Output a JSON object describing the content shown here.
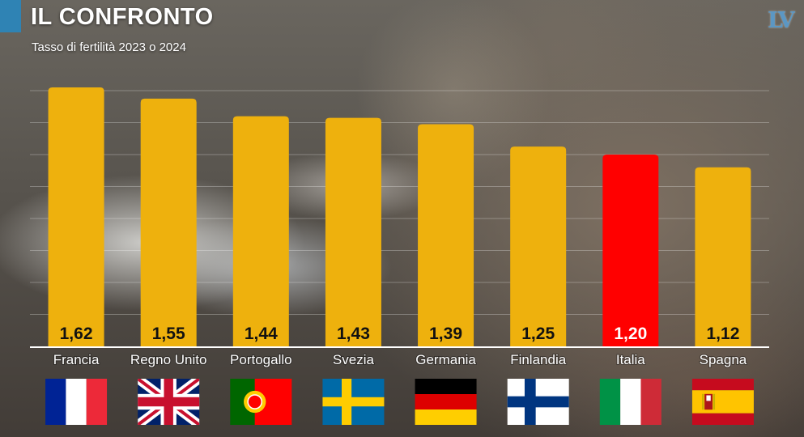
{
  "header": {
    "title": "IL CONFRONTO",
    "subtitle": "Tasso di fertilità 2023 o 2024",
    "logo": "LV"
  },
  "colors": {
    "bar": "#eeb10d",
    "highlight": "#ff0000",
    "accent": "#2f83b4"
  },
  "chart_data": {
    "type": "bar",
    "title": "IL CONFRONTO",
    "subtitle": "Tasso di fertilità 2023 o 2024",
    "categories": [
      "Francia",
      "Regno Unito",
      "Portogallo",
      "Svezia",
      "Germania",
      "Finlandia",
      "Italia",
      "Spagna"
    ],
    "values": [
      1.62,
      1.55,
      1.44,
      1.43,
      1.39,
      1.25,
      1.2,
      1.12
    ],
    "value_labels": [
      "1,62",
      "1,55",
      "1,44",
      "1,43",
      "1,39",
      "1,25",
      "1,20",
      "1,12"
    ],
    "highlight_category": "Italia",
    "flags": [
      "france-flag",
      "uk-flag",
      "portugal-flag",
      "sweden-flag",
      "germany-flag",
      "finland-flag",
      "italy-flag",
      "spain-flag"
    ],
    "xlabel": "",
    "ylabel": "",
    "ylim": [
      0,
      1.6
    ],
    "grid": true,
    "legend": "none"
  }
}
